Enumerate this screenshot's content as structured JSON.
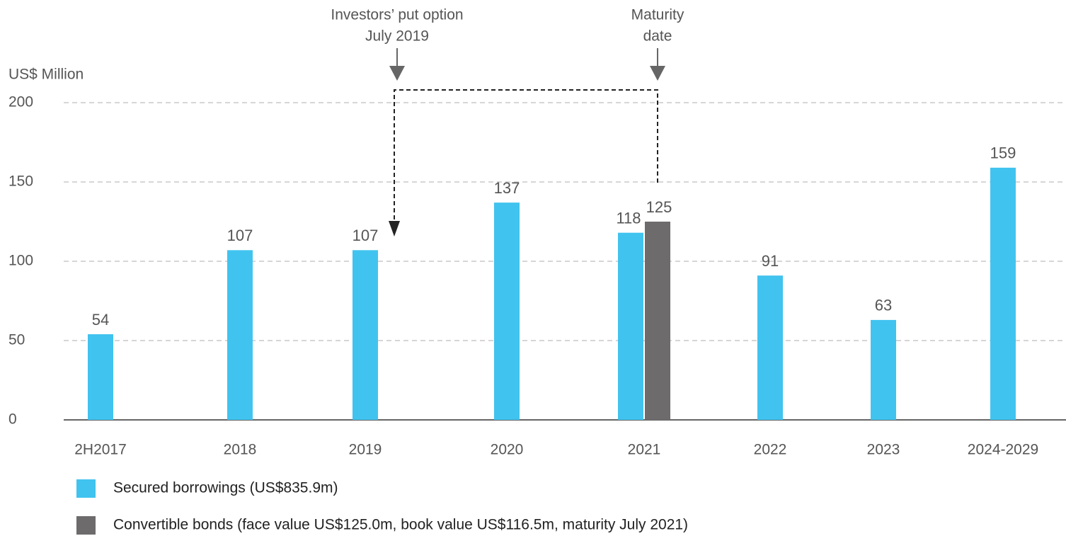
{
  "chart_data": {
    "type": "bar",
    "y_label": "US$ Million",
    "categories": [
      "2H2017",
      "2018",
      "2019",
      "2020",
      "2021",
      "2022",
      "2023",
      "2024-2029"
    ],
    "series": [
      {
        "name": "Secured borrowings (US$835.9m)",
        "color": "#41c3ef",
        "values": [
          54,
          107,
          107,
          137,
          118,
          91,
          63,
          159
        ]
      },
      {
        "name": "Convertible bonds (face value US$125.0m, book value US$116.5m, maturity July 2021)",
        "color": "#6d6b6b",
        "values": [
          null,
          null,
          null,
          null,
          125,
          null,
          null,
          null
        ]
      }
    ],
    "ylim": [
      0,
      200
    ],
    "yticks": [
      0,
      50,
      100,
      150,
      200
    ],
    "grid": true,
    "annotations": [
      {
        "lines": [
          "Investors’ put option",
          "July 2019"
        ]
      },
      {
        "lines": [
          "Maturity",
          "date"
        ]
      }
    ]
  }
}
